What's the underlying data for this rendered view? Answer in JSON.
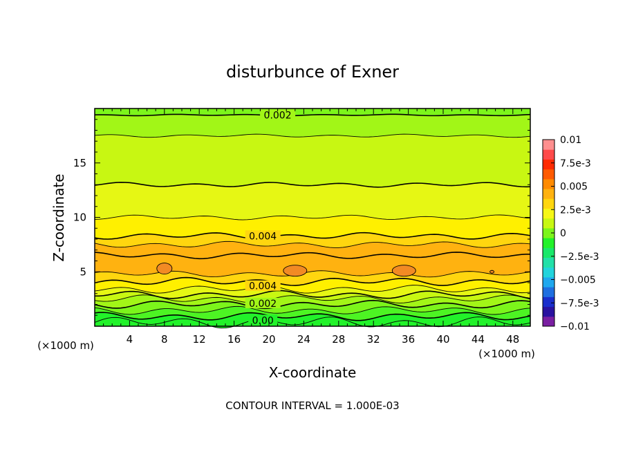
{
  "chart_data": {
    "type": "heatmap",
    "title": "disturbunce of Exner",
    "xlabel": "X-coordinate",
    "ylabel": "Z-coordinate",
    "x_unit_label": "(×1000 m)",
    "footer": "CONTOUR INTERVAL = 1.000E-03",
    "xlim": [
      0,
      50
    ],
    "ylim": [
      0,
      20
    ],
    "x_ticks": [
      4,
      8,
      12,
      16,
      20,
      24,
      28,
      32,
      36,
      40,
      44,
      48
    ],
    "x_tick_labels": [
      "4",
      "8",
      "12",
      "16",
      "20",
      "24",
      "28",
      "32",
      "36",
      "40",
      "44",
      "48"
    ],
    "y_ticks": [
      5,
      10,
      15
    ],
    "y_tick_labels": [
      "5",
      "10",
      "15"
    ],
    "colorbar": {
      "min": -0.01,
      "max": 0.01,
      "tick_values": [
        0.01,
        0.0075,
        0.005,
        0.0025,
        0,
        -0.0025,
        -0.005,
        -0.0075,
        -0.01
      ],
      "tick_labels": [
        "0.01",
        "7.5e-3",
        "0.005",
        "2.5e-3",
        "0",
        "−2.5e-3",
        "−0.005",
        "−7.5e-3",
        "−0.01"
      ],
      "colors": [
        "#7a1fa2",
        "#2a12a0",
        "#1a2ecc",
        "#1f6fe0",
        "#1fa8ee",
        "#22d4dc",
        "#22e0a8",
        "#19e86a",
        "#22f22a",
        "#7cf51b",
        "#c8f712",
        "#f6f716",
        "#ffd60f",
        "#ffb210",
        "#ff8a00",
        "#ff5a00",
        "#ff2a00",
        "#ff4a4a",
        "#ff8f8f"
      ]
    },
    "contour_labels": [
      {
        "text": "0.002",
        "x": 21.0,
        "y": 19.4
      },
      {
        "text": "0.004",
        "x": 19.3,
        "y": 8.3
      },
      {
        "text": "0.004",
        "x": 19.3,
        "y": 3.7
      },
      {
        "text": "0.002",
        "x": 19.3,
        "y": 2.1
      },
      {
        "text": "0.00",
        "x": 19.3,
        "y": 0.55
      }
    ],
    "bands": [
      {
        "level": 0.0005,
        "color": "#22f22a"
      },
      {
        "level": 0.001,
        "color": "#4df423"
      },
      {
        "level": 0.0015,
        "color": "#7cf51b"
      },
      {
        "level": 0.002,
        "color": "#a2f617"
      },
      {
        "level": 0.0025,
        "color": "#c8f712"
      },
      {
        "level": 0.003,
        "color": "#e6f714"
      },
      {
        "level": 0.0035,
        "color": "#fff000"
      },
      {
        "level": 0.004,
        "color": "#ffd60f"
      },
      {
        "level": 0.0045,
        "color": "#ffb210"
      },
      {
        "level": 0.005,
        "color": "#f49a28"
      }
    ],
    "band_boundaries": [
      {
        "level": 0.0005,
        "z": 0.35,
        "amp": 0.35
      },
      {
        "level": 0.001,
        "z": 0.9,
        "amp": 0.25
      },
      {
        "level": 0.0015,
        "z": 1.45,
        "amp": 0.25
      },
      {
        "level": 0.002,
        "z": 2.0,
        "amp": 0.25
      },
      {
        "level": 0.0025,
        "z": 2.5,
        "amp": 0.25
      },
      {
        "level": 0.003,
        "z": 2.9,
        "amp": 0.25
      },
      {
        "level": 0.0035,
        "z": 3.4,
        "amp": 0.25
      },
      {
        "level": 0.004,
        "z": 4.1,
        "amp": 0.25
      },
      {
        "level": 0.0045,
        "z": 4.8,
        "amp": 0.2
      },
      {
        "level": 0.0045,
        "z": 6.5,
        "amp": 0.2
      },
      {
        "level": 0.004,
        "z": 7.5,
        "amp": 0.2
      },
      {
        "level": 0.0035,
        "z": 8.3,
        "amp": 0.2
      },
      {
        "level": 0.003,
        "z": 10.0,
        "amp": 0.15
      },
      {
        "level": 0.0025,
        "z": 13.0,
        "amp": 0.15
      },
      {
        "level": 0.002,
        "z": 17.5,
        "amp": 0.1
      },
      {
        "level": 0.0015,
        "z": 19.4,
        "amp": 0.05
      }
    ],
    "peaks": [
      {
        "x": 8.0,
        "z": 5.3
      },
      {
        "x": 23.0,
        "z": 5.1
      },
      {
        "x": 35.5,
        "z": 5.1
      },
      {
        "x": 45.6,
        "z": 5.0
      }
    ]
  }
}
